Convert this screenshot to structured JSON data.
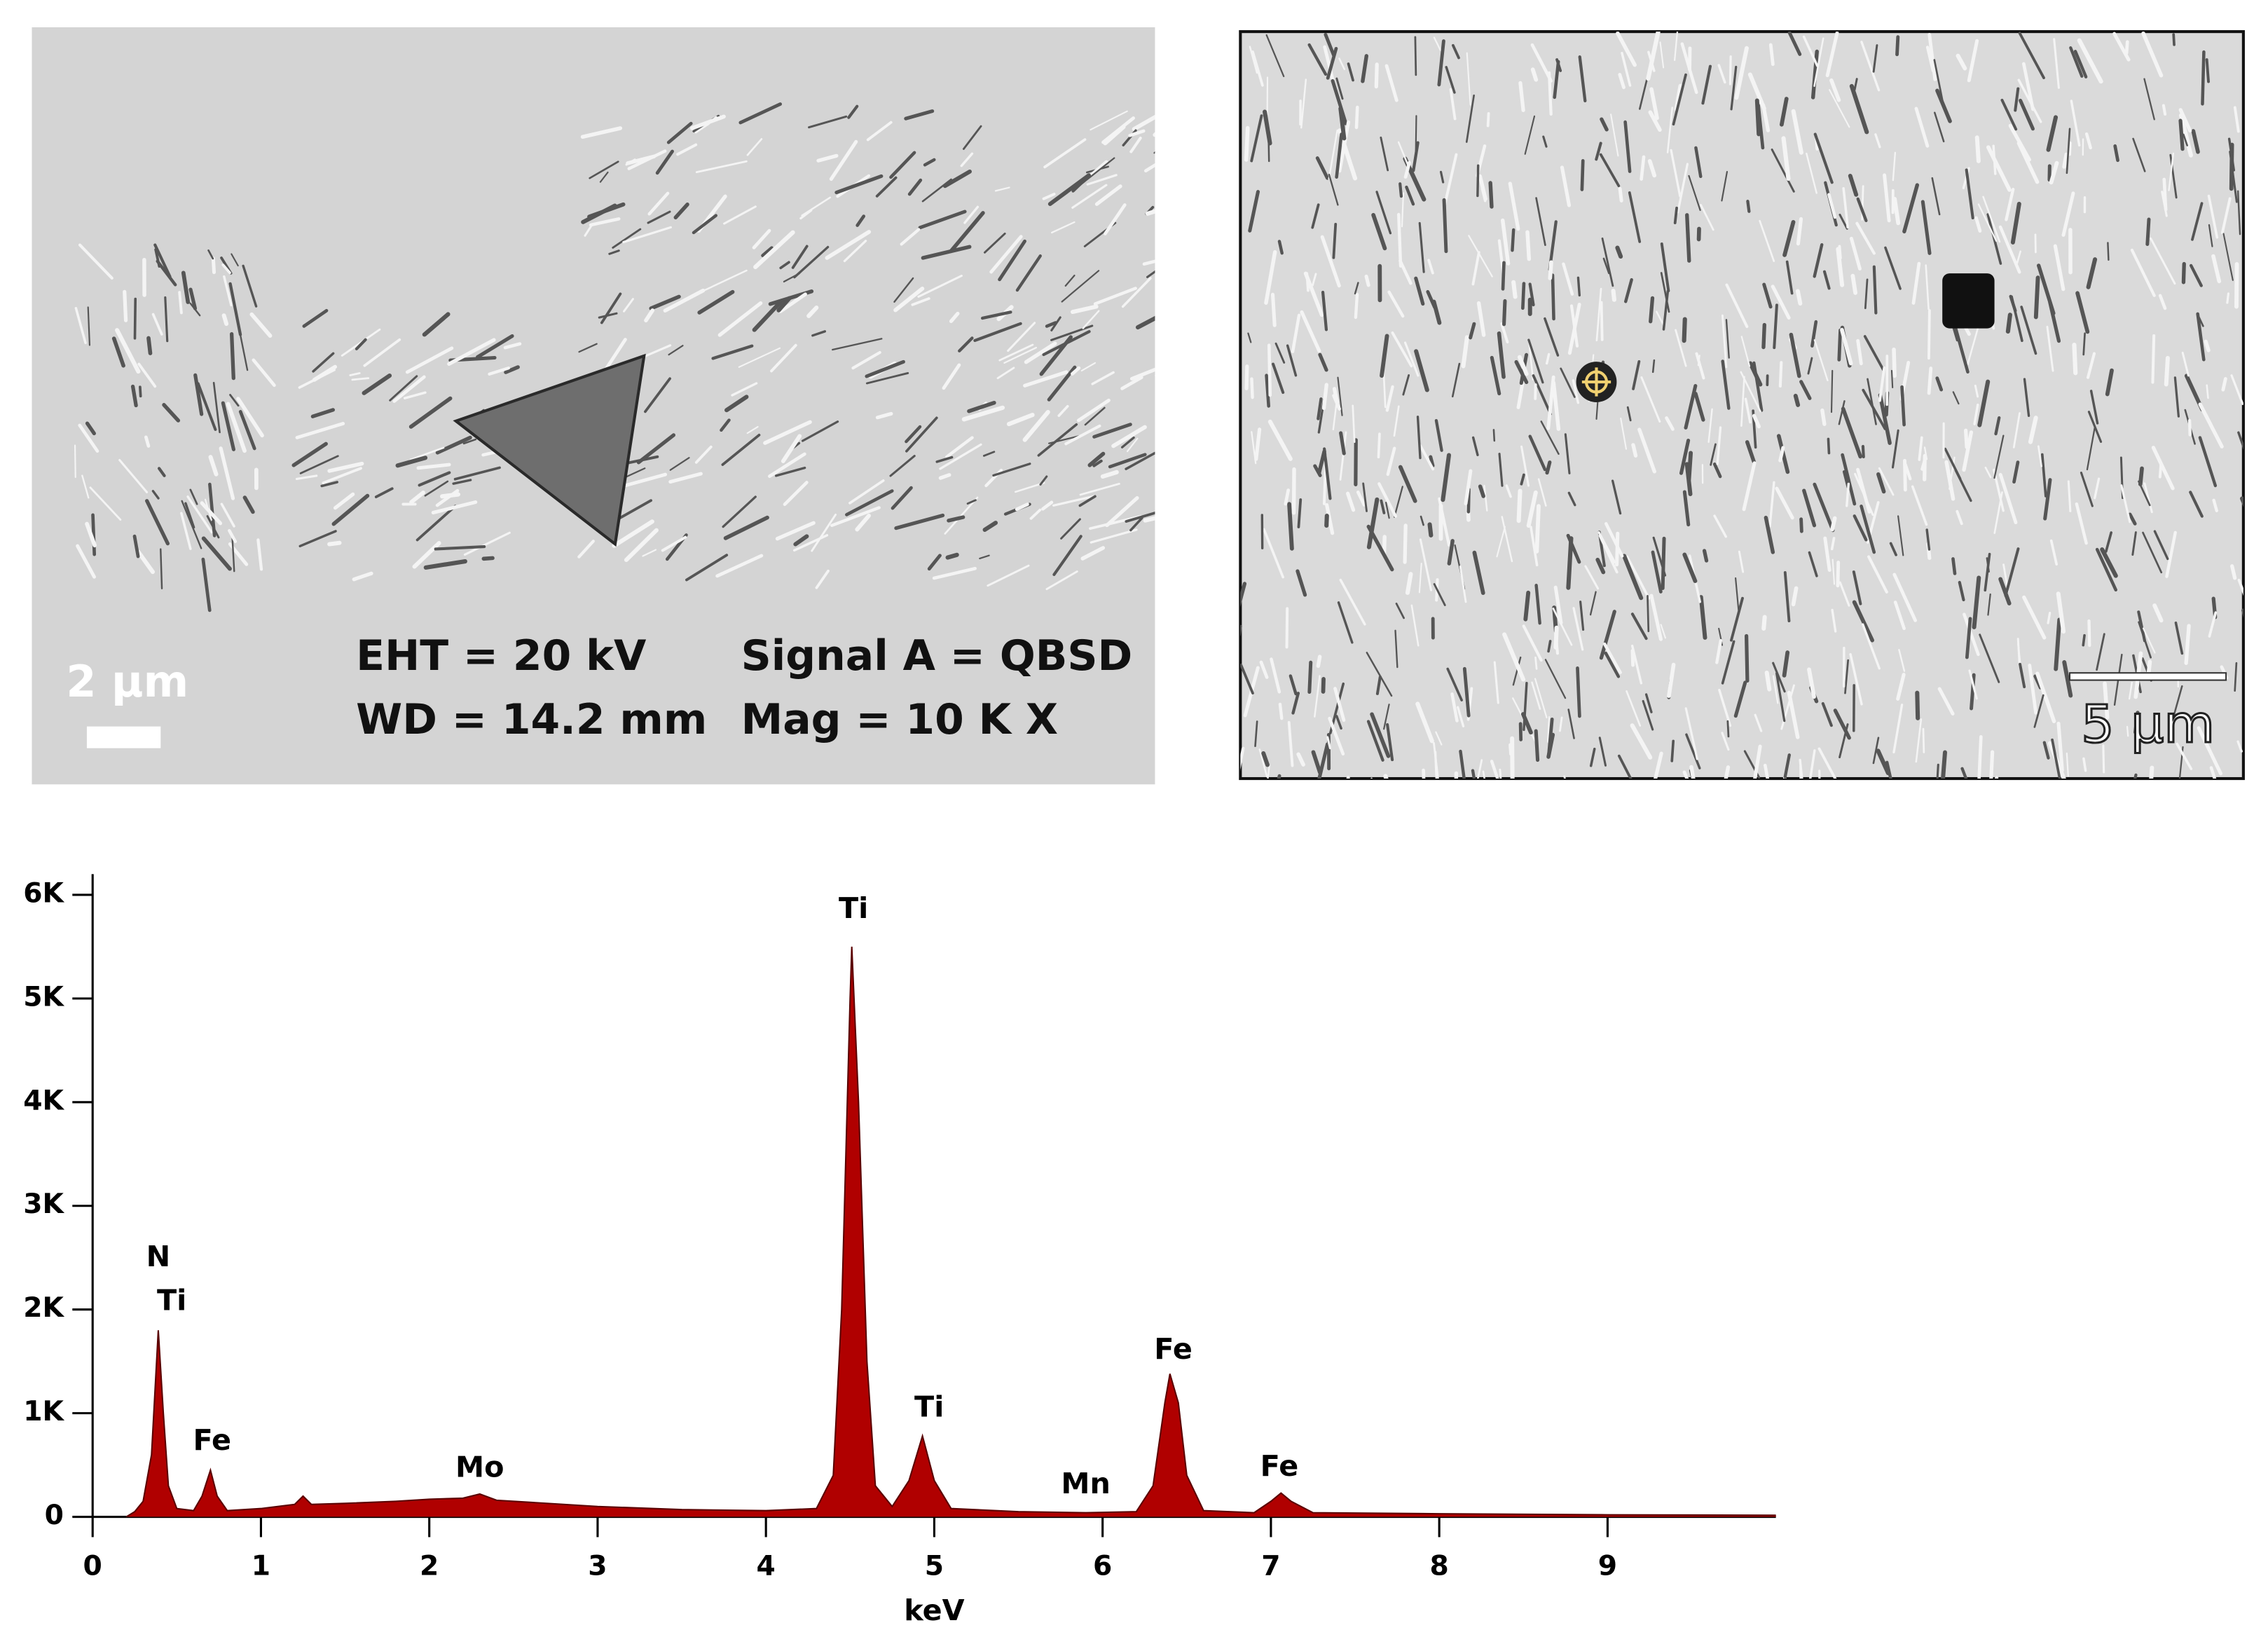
{
  "images": [
    {
      "texts": [
        "EHT = 20 kV",
        "WD = 14.2 mm",
        "Signal A = QBSD",
        "Mag = 10 K X"
      ],
      "scale_bar": "2 μm"
    },
    {
      "scale_bar": "5 μm"
    }
  ],
  "chart_data": {
    "type": "area",
    "x_label": "keV",
    "color": "#b00000",
    "x": [
      0.2,
      0.25,
      0.3,
      0.35,
      0.39,
      0.42,
      0.45,
      0.5,
      0.6,
      0.65,
      0.7,
      0.74,
      0.8,
      1.0,
      1.2,
      1.25,
      1.3,
      1.5,
      1.8,
      2.0,
      2.2,
      2.3,
      2.4,
      2.6,
      3.0,
      3.5,
      4.0,
      4.3,
      4.4,
      4.45,
      4.5,
      4.51,
      4.55,
      4.6,
      4.65,
      4.75,
      4.85,
      4.93,
      5.0,
      5.1,
      5.5,
      5.9,
      6.2,
      6.3,
      6.37,
      6.4,
      6.45,
      6.5,
      6.6,
      6.9,
      7.0,
      7.06,
      7.12,
      7.25,
      8.0,
      9.0,
      10.0
    ],
    "values": [
      0,
      50,
      150,
      600,
      1800,
      1000,
      300,
      80,
      60,
      200,
      450,
      200,
      60,
      80,
      120,
      200,
      120,
      130,
      150,
      170,
      180,
      220,
      160,
      140,
      100,
      70,
      60,
      80,
      400,
      2000,
      5000,
      5500,
      4000,
      1500,
      300,
      100,
      350,
      780,
      350,
      80,
      50,
      40,
      50,
      300,
      1100,
      1380,
      1100,
      400,
      60,
      40,
      150,
      230,
      150,
      40,
      30,
      20,
      15
    ],
    "annotations": [
      {
        "text": "N",
        "x": 0.39,
        "y": 2490
      },
      {
        "text": "Ti",
        "x": 0.47,
        "y": 2070
      },
      {
        "text": "Fe",
        "x": 0.71,
        "y": 720
      },
      {
        "text": "Mo",
        "x": 2.3,
        "y": 460
      },
      {
        "text": "Ti",
        "x": 4.52,
        "y": 5850
      },
      {
        "text": "Ti",
        "x": 4.97,
        "y": 1040
      },
      {
        "text": "Mn",
        "x": 5.9,
        "y": 300
      },
      {
        "text": "Fe",
        "x": 6.42,
        "y": 1600
      },
      {
        "text": "Fe",
        "x": 7.05,
        "y": 470
      }
    ],
    "xlim": [
      0,
      10
    ],
    "xticks": [
      0,
      1,
      2,
      3,
      4,
      5,
      6,
      7,
      8,
      9
    ],
    "ylim": [
      0,
      6200
    ],
    "yticks": [
      0,
      {
        "value": 1000,
        "label": "1K"
      },
      {
        "value": 2000,
        "label": "2K"
      },
      {
        "value": 3000,
        "label": "3K"
      },
      {
        "value": 4000,
        "label": "4K"
      },
      {
        "value": 5000,
        "label": "5K"
      },
      {
        "value": 6000,
        "label": "6K"
      }
    ]
  }
}
